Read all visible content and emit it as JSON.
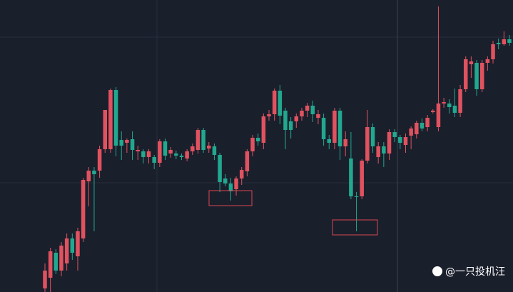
{
  "chart_data": {
    "type": "candlestick",
    "ylim": [
      0,
      409
    ],
    "up_color": "#e0525f",
    "down_color": "#22a88f",
    "candles": [
      [
        5,
        40,
        0,
        30
      ],
      [
        20,
        62,
        0,
        57
      ],
      [
        55,
        60,
        25,
        30
      ],
      [
        30,
        70,
        22,
        65
      ],
      [
        40,
        82,
        30,
        75
      ],
      [
        75,
        82,
        45,
        55
      ],
      [
        50,
        90,
        30,
        85
      ],
      [
        75,
        160,
        70,
        157
      ],
      [
        155,
        175,
        120,
        170
      ],
      [
        170,
        175,
        85,
        165
      ],
      [
        170,
        205,
        160,
        200
      ],
      [
        200,
        255,
        195,
        255
      ],
      [
        200,
        285,
        195,
        283
      ],
      [
        283,
        287,
        190,
        205
      ],
      [
        213,
        225,
        185,
        205
      ],
      [
        209,
        215,
        195,
        213
      ],
      [
        214,
        225,
        185,
        199
      ],
      [
        197,
        205,
        185,
        199
      ],
      [
        197,
        200,
        180,
        189
      ],
      [
        189,
        200,
        180,
        197
      ],
      [
        189,
        192,
        172,
        181
      ],
      [
        181,
        214,
        175,
        211
      ],
      [
        211,
        215,
        185,
        191
      ],
      [
        194,
        203,
        188,
        199
      ],
      [
        194,
        198,
        186,
        191
      ],
      [
        191,
        194,
        185,
        189
      ],
      [
        187,
        200,
        183,
        197
      ],
      [
        197,
        208,
        192,
        204
      ],
      [
        199,
        230,
        194,
        227
      ],
      [
        227,
        230,
        195,
        199
      ],
      [
        201,
        210,
        195,
        205
      ],
      [
        204,
        208,
        185,
        192
      ],
      [
        192,
        195,
        140,
        154
      ],
      [
        159,
        165,
        148,
        152
      ],
      [
        152,
        160,
        128,
        141
      ],
      [
        144,
        162,
        135,
        159
      ],
      [
        159,
        175,
        150,
        171
      ],
      [
        169,
        200,
        162,
        197
      ],
      [
        197,
        220,
        190,
        216
      ],
      [
        216,
        222,
        205,
        211
      ],
      [
        209,
        250,
        200,
        246
      ],
      [
        246,
        255,
        240,
        249
      ],
      [
        249,
        285,
        240,
        282
      ],
      [
        282,
        290,
        235,
        247
      ],
      [
        254,
        258,
        200,
        227
      ],
      [
        239,
        245,
        215,
        227
      ],
      [
        239,
        250,
        230,
        246
      ],
      [
        246,
        258,
        240,
        254
      ],
      [
        254,
        265,
        245,
        261
      ],
      [
        261,
        268,
        238,
        249
      ],
      [
        244,
        255,
        235,
        249
      ],
      [
        244,
        250,
        205,
        214
      ],
      [
        214,
        220,
        200,
        209
      ],
      [
        209,
        258,
        200,
        254
      ],
      [
        254,
        258,
        185,
        204
      ],
      [
        204,
        225,
        190,
        214
      ],
      [
        187,
        224,
        130,
        134
      ],
      [
        134,
        140,
        85,
        133
      ],
      [
        134,
        186,
        130,
        184
      ],
      [
        184,
        255,
        180,
        231
      ],
      [
        231,
        236,
        195,
        204
      ],
      [
        189,
        210,
        180,
        204
      ],
      [
        204,
        210,
        175,
        194
      ],
      [
        194,
        228,
        185,
        224
      ],
      [
        224,
        228,
        210,
        217
      ],
      [
        217,
        220,
        200,
        209
      ],
      [
        206,
        222,
        195,
        217
      ],
      [
        219,
        232,
        200,
        229
      ],
      [
        221,
        240,
        215,
        237
      ],
      [
        237,
        243,
        225,
        229
      ],
      [
        231,
        248,
        225,
        244
      ],
      [
        252,
        256,
        250,
        254
      ],
      [
        231,
        400,
        225,
        264
      ],
      [
        264,
        272,
        258,
        266
      ],
      [
        264,
        270,
        250,
        259
      ],
      [
        261,
        285,
        245,
        251
      ],
      [
        251,
        290,
        245,
        284
      ],
      [
        284,
        330,
        280,
        326
      ],
      [
        319,
        330,
        300,
        323
      ],
      [
        321,
        325,
        275,
        284
      ],
      [
        284,
        325,
        280,
        321
      ],
      [
        321,
        330,
        310,
        326
      ],
      [
        326,
        352,
        320,
        347
      ],
      [
        349,
        355,
        340,
        347
      ],
      [
        347,
        365,
        345,
        354
      ],
      [
        354,
        360,
        345,
        349
      ]
    ]
  },
  "watermark": "@一只投机汪"
}
